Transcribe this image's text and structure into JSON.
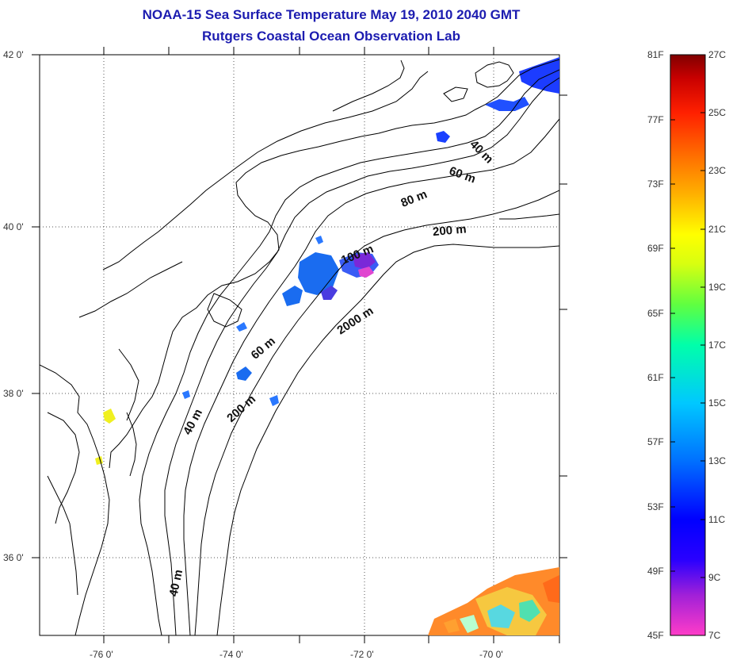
{
  "title": {
    "line1": "NOAA-15 Sea Surface Temperature May 19, 2010 2040 GMT",
    "line2": "Rutgers Coastal Ocean Observation Lab"
  },
  "axes": {
    "latitude_labels": [
      "42 0'",
      "40 0'",
      "38 0'",
      "36 0'"
    ],
    "longitude_labels": [
      "-76 0'",
      "-74 0'",
      "-72 0'",
      "-70 0'"
    ]
  },
  "contour_labels": [
    "40 m",
    "60 m",
    "80 m",
    "200 m",
    "100 m",
    "2000 m",
    "60 m",
    "200 m",
    "40 m",
    "40 m"
  ],
  "colorbar": {
    "fahrenheit": [
      "81F",
      "77F",
      "73F",
      "69F",
      "65F",
      "61F",
      "57F",
      "53F",
      "49F",
      "45F"
    ],
    "celsius": [
      "27C",
      "25C",
      "23C",
      "21C",
      "19C",
      "17C",
      "15C",
      "13C",
      "11C",
      "9C",
      "7C"
    ],
    "colors": [
      "#ff3cc8",
      "#7a10d0",
      "#0000ff",
      "#0070ff",
      "#00c8ff",
      "#00ffaa",
      "#60ff40",
      "#d8ff10",
      "#ffff00",
      "#ffb000",
      "#ff6a00",
      "#ff2000",
      "#c80000",
      "#800000"
    ]
  }
}
